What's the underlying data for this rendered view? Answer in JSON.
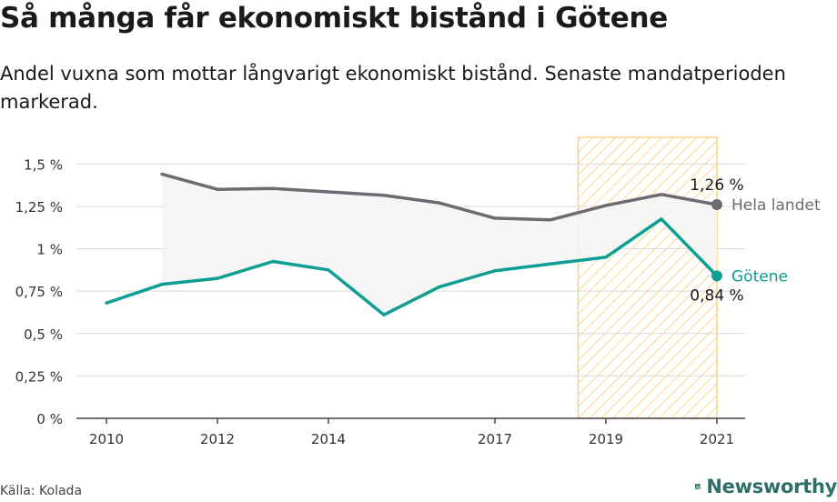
{
  "title": "Så många får ekonomiskt bistånd i Götene",
  "subtitle": "Andel vuxna som mottar långvarigt ekonomiskt bistånd. Senaste mandatperioden markerad.",
  "source": "Källa: Kolada",
  "brand": "Newsworthy",
  "colors": {
    "national": "#6d6a72",
    "local": "#0e9e93",
    "highlight_fill": "#fbd98a",
    "highlight_border": "#f6d28a",
    "axis": "#444444",
    "grid": "#d9d9d9",
    "band": "#f4f4f4",
    "brand": "#2f6f6a"
  },
  "chart_data": {
    "type": "line",
    "x_ticks": [
      "2010",
      "2012",
      "2014",
      "2017",
      "2019",
      "2021"
    ],
    "y_ticks": [
      "0 %",
      "0,25 %",
      "0,5 %",
      "0,75 %",
      "1 %",
      "1,25 %",
      "1,5 %"
    ],
    "xlim": [
      2009.5,
      2021.5
    ],
    "ylim": [
      0,
      1.6
    ],
    "highlight_period": [
      2018.5,
      2021
    ],
    "grid": "horizontal",
    "series": [
      {
        "name": "Hela landet",
        "color_key": "national",
        "end_label": "1,26 %",
        "x": [
          2011,
          2012,
          2013,
          2014,
          2015,
          2016,
          2017,
          2018,
          2019,
          2020,
          2021
        ],
        "y": [
          1.44,
          1.35,
          1.355,
          1.335,
          1.315,
          1.27,
          1.18,
          1.17,
          1.255,
          1.32,
          1.26
        ]
      },
      {
        "name": "Götene",
        "color_key": "local",
        "end_label": "0,84 %",
        "x": [
          2010,
          2011,
          2012,
          2013,
          2014,
          2015,
          2016,
          2017,
          2018,
          2019,
          2020,
          2021
        ],
        "y": [
          0.68,
          0.79,
          0.825,
          0.925,
          0.875,
          0.61,
          0.775,
          0.87,
          0.91,
          0.95,
          1.175,
          0.84
        ]
      }
    ]
  }
}
